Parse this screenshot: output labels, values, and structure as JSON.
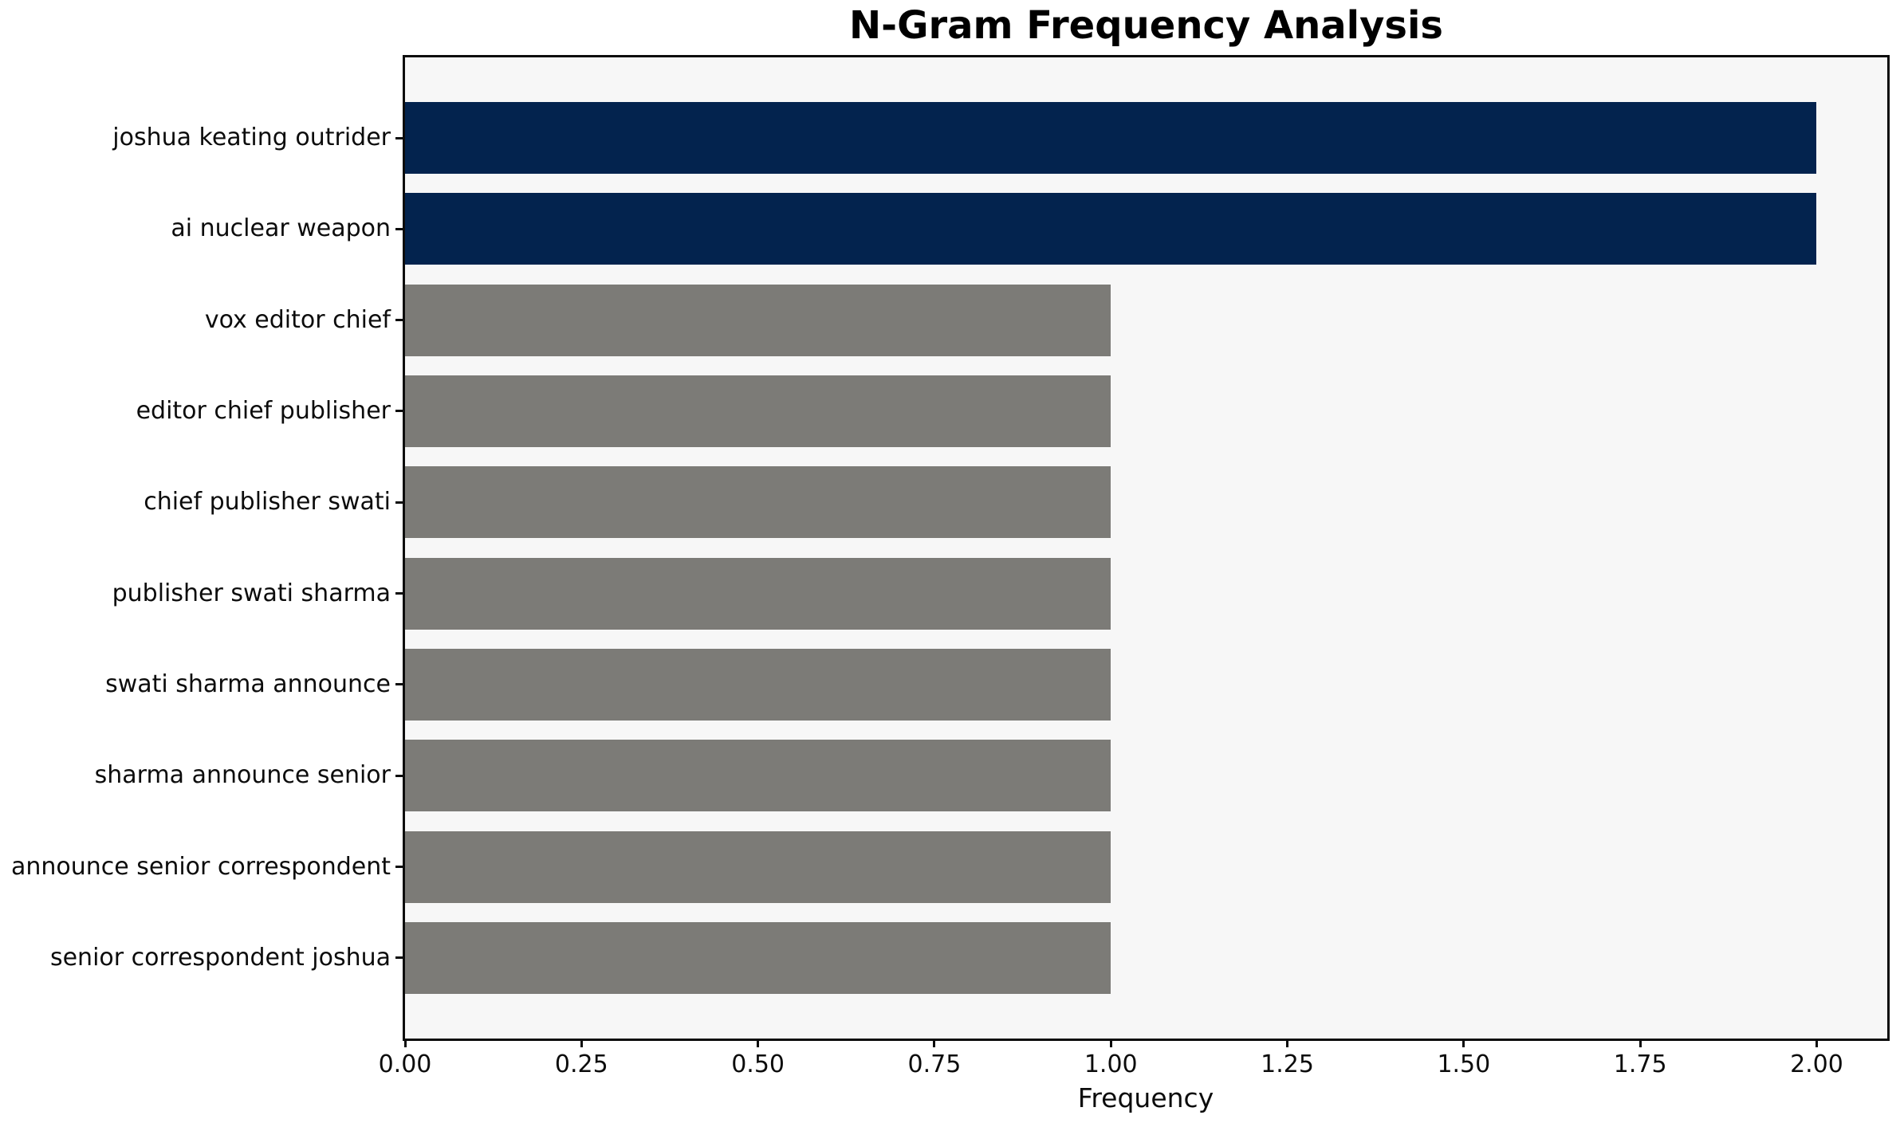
{
  "chart_data": {
    "type": "bar",
    "orientation": "horizontal",
    "title": "N-Gram Frequency Analysis",
    "xlabel": "Frequency",
    "ylabel": "",
    "categories": [
      "joshua keating outrider",
      "ai nuclear weapon",
      "vox editor chief",
      "editor chief publisher",
      "chief publisher swati",
      "publisher swati sharma",
      "swati sharma announce",
      "sharma announce senior",
      "announce senior correspondent",
      "senior correspondent joshua"
    ],
    "values": [
      2.0,
      2.0,
      1.0,
      1.0,
      1.0,
      1.0,
      1.0,
      1.0,
      1.0,
      1.0
    ],
    "bar_colors": [
      "#03234e",
      "#03234e",
      "#7c7b77",
      "#7c7b77",
      "#7c7b77",
      "#7c7b77",
      "#7c7b77",
      "#7c7b77",
      "#7c7b77",
      "#7c7b77"
    ],
    "xlim": [
      0,
      2.1
    ],
    "xticks": [
      {
        "value": 0.0,
        "label": "0.00"
      },
      {
        "value": 0.25,
        "label": "0.25"
      },
      {
        "value": 0.5,
        "label": "0.50"
      },
      {
        "value": 0.75,
        "label": "0.75"
      },
      {
        "value": 1.0,
        "label": "1.00"
      },
      {
        "value": 1.25,
        "label": "1.25"
      },
      {
        "value": 1.5,
        "label": "1.50"
      },
      {
        "value": 1.75,
        "label": "1.75"
      },
      {
        "value": 2.0,
        "label": "2.00"
      }
    ],
    "grid": false,
    "legend": null,
    "colors": {
      "highlight_bar": "#03234e",
      "default_bar": "#7c7b77",
      "plot_bg": "#f7f7f7",
      "figure_bg": "#ffffff",
      "spine": "#0c0c0c",
      "text": "#0c0c0c"
    }
  }
}
